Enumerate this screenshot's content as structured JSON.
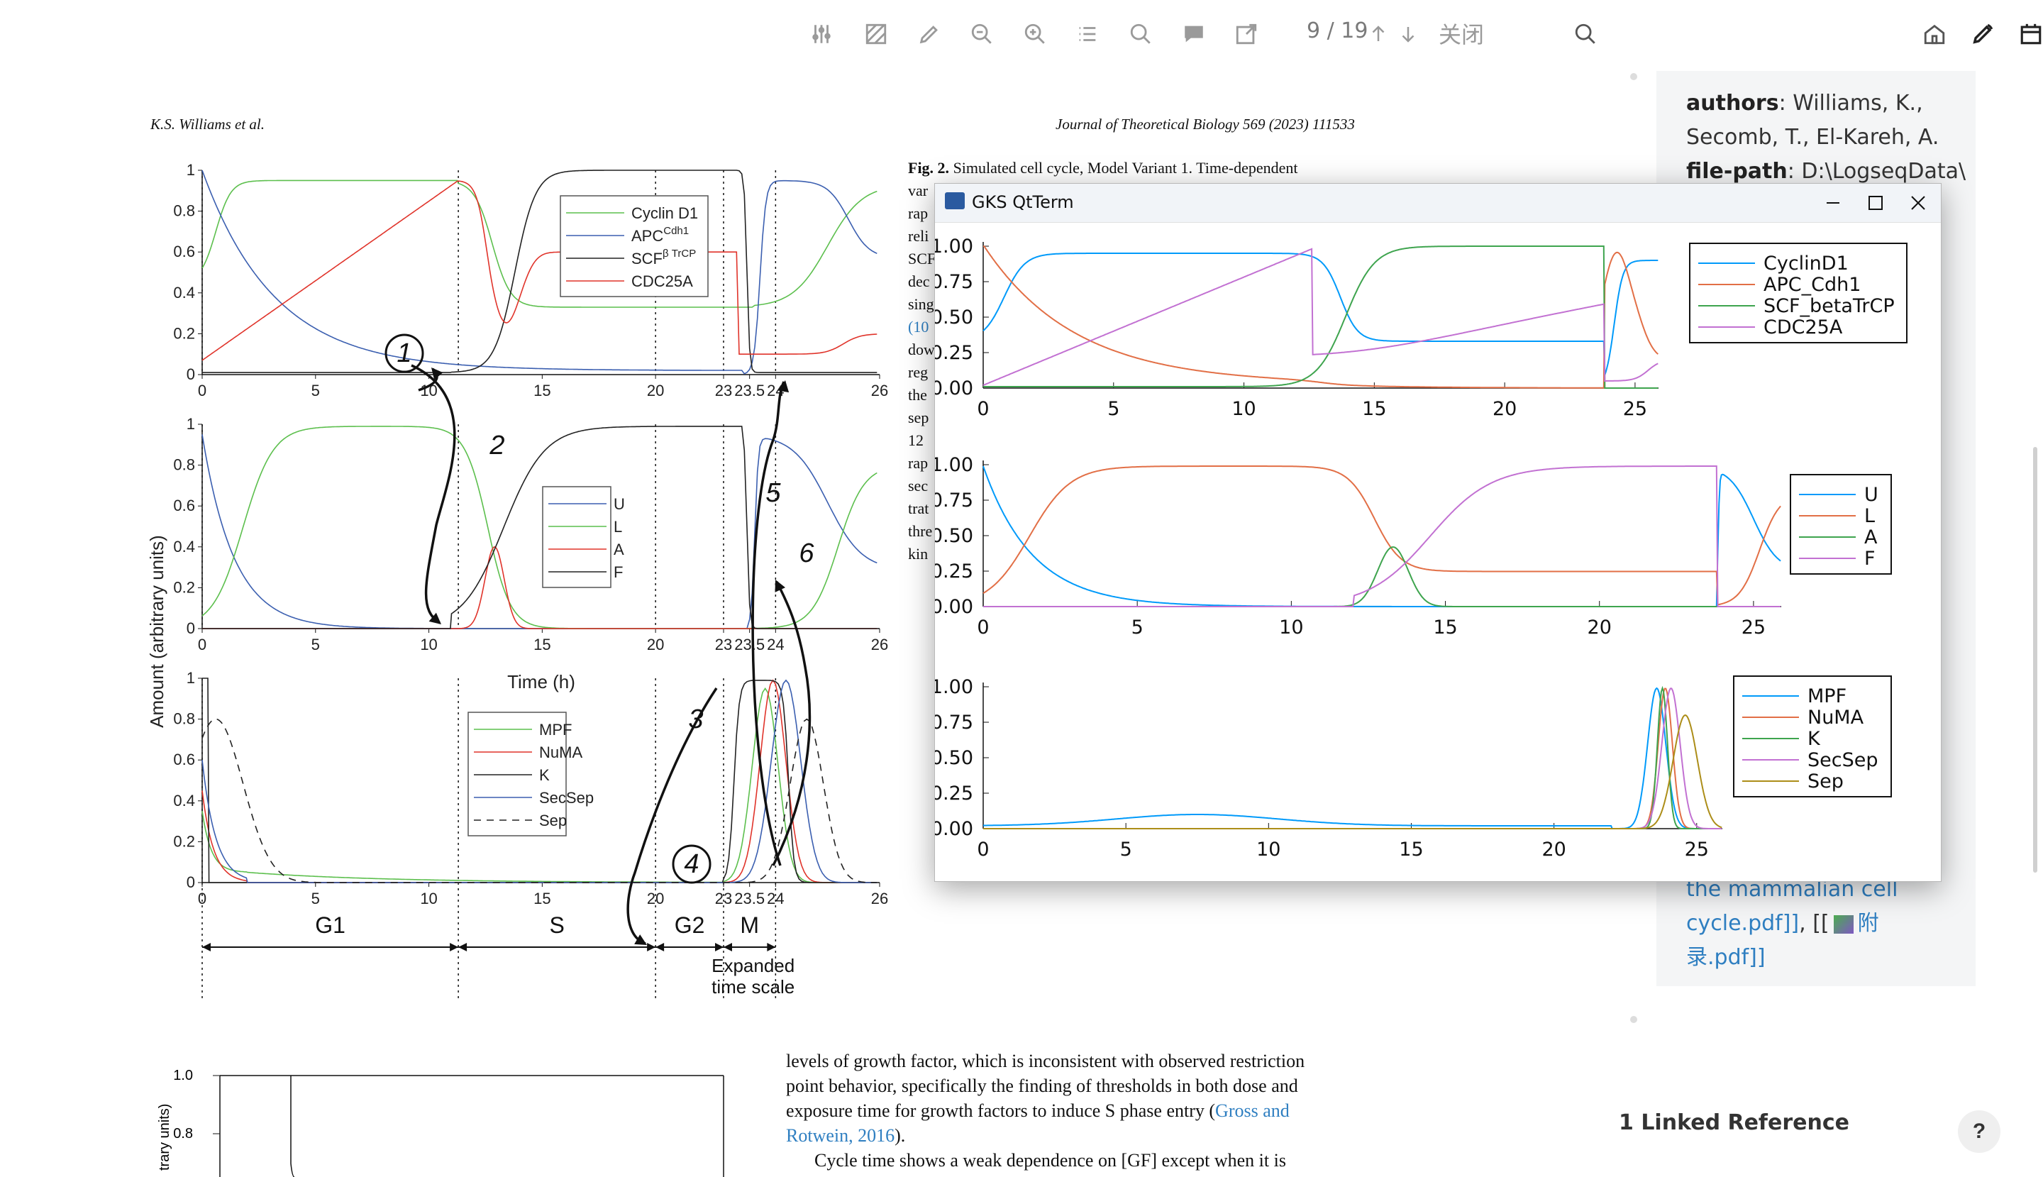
{
  "toolbar": {
    "page_current": "9",
    "page_total": "19",
    "page_label": "9 / 19",
    "close_label": "关闭",
    "icons": [
      "sliders-icon",
      "highlight-area-icon",
      "pen-icon",
      "zoom-out-icon",
      "zoom-in-icon",
      "outline-list-icon",
      "search-icon",
      "comment-icon",
      "export-icon",
      "arrow-up-icon",
      "arrow-down-icon",
      "search-icon",
      "home-icon",
      "edit-icon",
      "calendar-icon"
    ]
  },
  "pdf": {
    "header_left": "K.S. Williams et al.",
    "header_right": "Journal of Theoretical Biology 569 (2023) 111533",
    "caption_bold": "Fig. 2.",
    "caption_text": "Simulated cell cycle, Model Variant 1. Time-dependent",
    "caption_lines": [
      "var",
      "rap",
      "reli",
      "SCF",
      "dec",
      "sing",
      "(10",
      "dow",
      "reg",
      "the",
      "sep",
      "12",
      "rap",
      "sec",
      "trat",
      "thre",
      "kin"
    ],
    "body_lines": [
      "levels of growth factor, which is inconsistent with observed restriction",
      "point behavior, specifically the finding of thresholds in both dose and",
      "exposure time for growth factors to induce S phase entry (",
      "Rotwein, 2016).",
      "Cycle time shows a weak dependence on [GF] except when it is"
    ],
    "body_link1": "Gross and",
    "body_link2": "Rotwein, 2016",
    "figure": {
      "ylabel": "Amount (arbitrary units)",
      "xlabel": "Time (h)",
      "yticks": [
        "0",
        "0.2",
        "0.4",
        "0.6",
        "0.8",
        "1"
      ],
      "xticks": [
        "0",
        "5",
        "10",
        "15",
        "20",
        "23",
        "23.5",
        "24",
        "26"
      ],
      "legend1": [
        "Cyclin D1",
        "APC",
        "SCF",
        "CDC25A"
      ],
      "legend1_sup": [
        "",
        "Cdh1",
        "β TrCP",
        ""
      ],
      "legend2": [
        "U",
        "L",
        "A",
        "F"
      ],
      "legend3": [
        "MPF",
        "NuMA",
        "K",
        "SecSep",
        "Sep"
      ],
      "phases": [
        "G1",
        "S",
        "G2",
        "M"
      ],
      "expanded": [
        "Expanded",
        "time scale"
      ],
      "numbers": [
        "1",
        "2",
        "3",
        "4",
        "5",
        "6"
      ],
      "bottom_yticks": [
        "1.0",
        "0.8"
      ],
      "bottom_ylabel": "trary units)"
    }
  },
  "sidebar": {
    "authors_key": "authors",
    "authors_val": ": Williams, K., Secomb, T., El-Kareh, A.",
    "file_key": "file-path",
    "file_val": ": D:\\LogseqData\\",
    "link_text_1": "the mammalian cell",
    "link_text_2": "cycle.pdf]]",
    "link_sep": ", [[",
    "link_text_3": "附",
    "link_text_4": "录.pdf]]",
    "linked_ref": "1 Linked Reference",
    "help": "?"
  },
  "gks": {
    "title": "GKS QtTerm",
    "colors": {
      "c1": "#009AFA",
      "c2": "#E26F46",
      "c3": "#3EA44E",
      "c4": "#C271D2",
      "c5": "#AC8D18"
    },
    "yticks": [
      "0.00",
      "0.25",
      "0.50",
      "0.75",
      "1.00"
    ],
    "plot1": {
      "legend": [
        "CyclinD1",
        "APC_Cdh1",
        "SCF_betaTrCP",
        "CDC25A"
      ],
      "xticks": [
        "0",
        "5",
        "10",
        "15",
        "20",
        "25"
      ]
    },
    "plot2": {
      "legend": [
        "U",
        "L",
        "A",
        "F"
      ],
      "xticks": [
        "0",
        "5",
        "10",
        "15",
        "20",
        "25"
      ]
    },
    "plot3": {
      "legend": [
        "MPF",
        "NuMA",
        "K",
        "SecSep",
        "Sep"
      ],
      "xticks": [
        "0",
        "5",
        "10",
        "15",
        "20",
        "25"
      ]
    }
  }
}
